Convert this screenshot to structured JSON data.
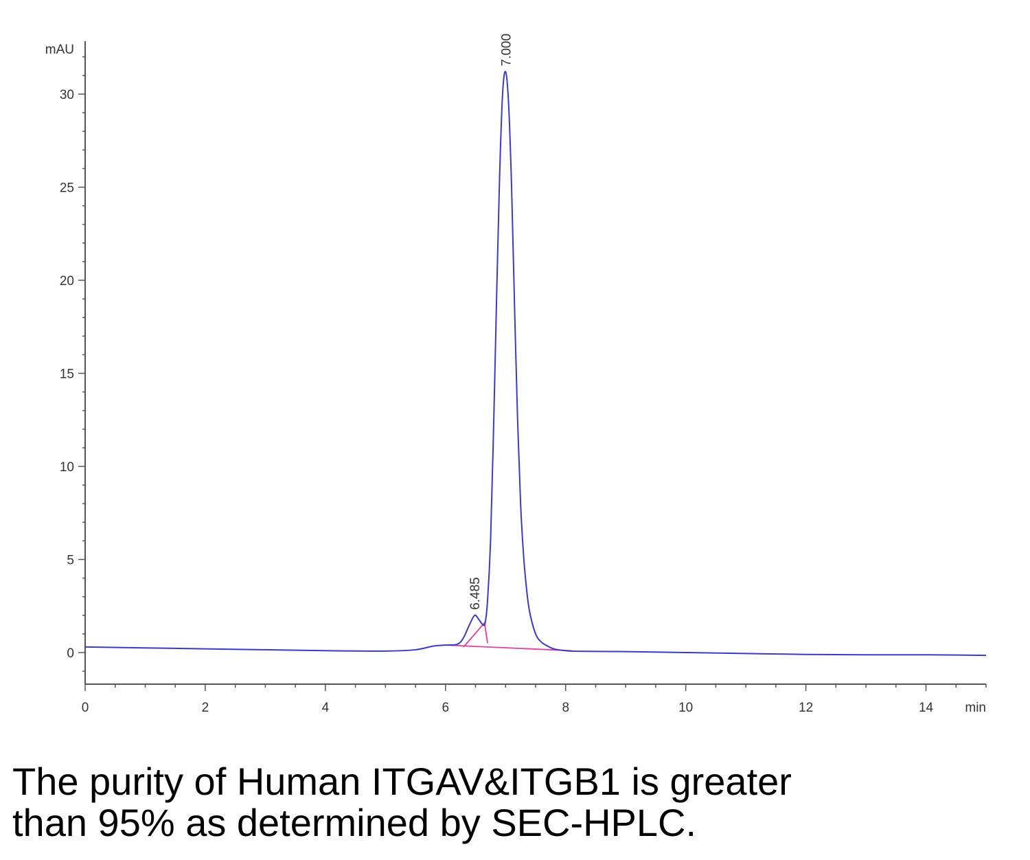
{
  "chart_data": {
    "type": "line",
    "x_unit": "min",
    "y_unit": "mAU",
    "xlim": [
      0,
      15
    ],
    "ylim": [
      -1.7,
      32.5
    ],
    "x_ticks": [
      0,
      2,
      4,
      6,
      8,
      10,
      12,
      14
    ],
    "y_ticks": [
      0,
      5,
      10,
      15,
      20,
      25,
      30
    ],
    "grid": false,
    "series": [
      {
        "color": "#3a3ac8",
        "x": [
          0,
          1,
          2,
          3,
          4,
          5,
          5.5,
          5.8,
          6.0,
          6.2,
          6.3,
          6.4,
          6.485,
          6.55,
          6.62,
          6.66,
          6.7,
          6.75,
          6.8,
          6.85,
          6.9,
          6.95,
          7.0,
          7.05,
          7.1,
          7.15,
          7.2,
          7.25,
          7.3,
          7.35,
          7.4,
          7.5,
          7.6,
          7.7,
          7.8,
          8.0,
          8.2,
          9,
          10,
          11,
          12,
          13,
          14,
          15
        ],
        "y": [
          0.3,
          0.25,
          0.2,
          0.15,
          0.1,
          0.08,
          0.15,
          0.35,
          0.4,
          0.45,
          0.8,
          1.5,
          2.0,
          1.8,
          1.5,
          1.6,
          2.8,
          6.0,
          12.0,
          19.0,
          25.5,
          30.0,
          31.2,
          29.5,
          25.0,
          18.5,
          12.5,
          8.0,
          5.2,
          3.4,
          2.2,
          1.0,
          0.55,
          0.35,
          0.2,
          0.1,
          0.07,
          0.05,
          0.0,
          -0.05,
          -0.1,
          -0.12,
          -0.12,
          -0.15
        ]
      }
    ],
    "baselines": {
      "color": "#e040a0",
      "x": [
        [
          6.0,
          8.1
        ],
        [
          6.3,
          6.65,
          6.7
        ]
      ],
      "y": [
        [
          0.4,
          0.1
        ],
        [
          0.3,
          1.6,
          0.5
        ]
      ]
    },
    "annotations": [
      {
        "text": "6.485",
        "x": 6.485,
        "y": 2.0
      },
      {
        "text": "7.000",
        "x": 7.0,
        "y": 31.2
      }
    ]
  },
  "caption": {
    "line1": "The purity of Human ITGAV&ITGB1 is greater",
    "line2": "than 95% as determined by SEC-HPLC."
  }
}
